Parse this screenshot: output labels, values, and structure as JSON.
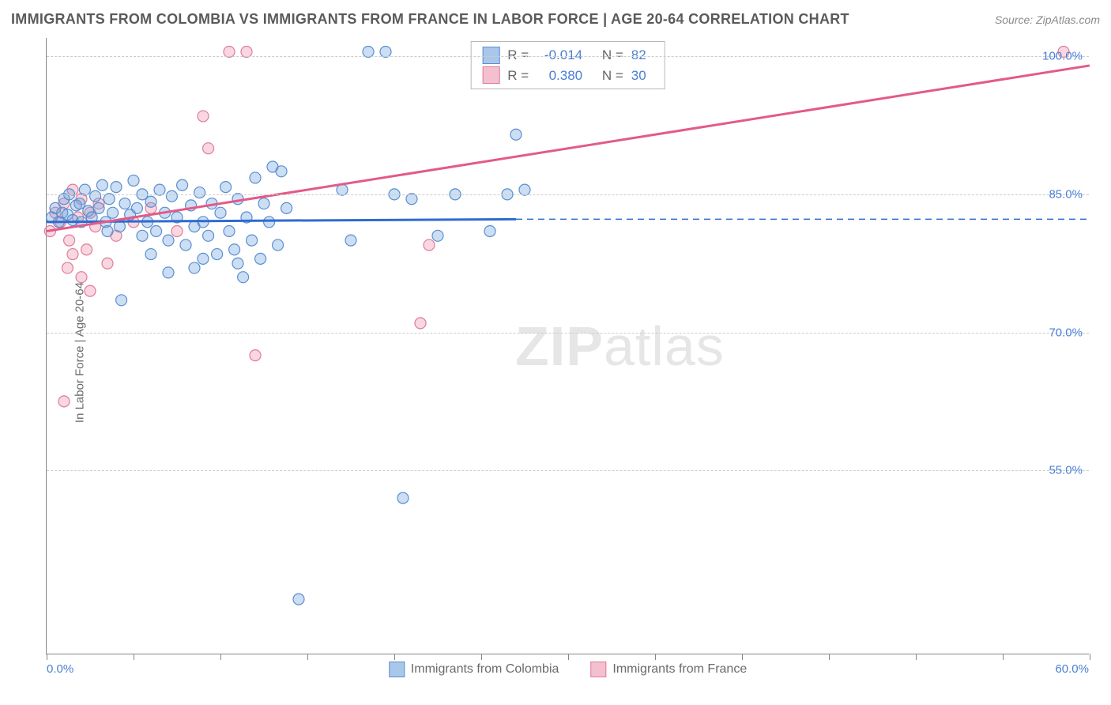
{
  "title": "IMMIGRANTS FROM COLOMBIA VS IMMIGRANTS FROM FRANCE IN LABOR FORCE | AGE 20-64 CORRELATION CHART",
  "source": "Source: ZipAtlas.com",
  "y_axis_label": "In Labor Force | Age 20-64",
  "watermark_bold": "ZIP",
  "watermark_rest": "atlas",
  "chart": {
    "type": "scatter",
    "xlim": [
      0,
      60
    ],
    "ylim": [
      35,
      102
    ],
    "x_tick_positions": [
      0,
      5,
      10,
      15,
      20,
      25,
      30,
      35,
      40,
      45,
      50,
      55,
      60
    ],
    "x_tick_labels_shown": {
      "0": "0.0%",
      "60": "60.0%"
    },
    "y_gridlines": [
      55,
      70,
      85,
      100
    ],
    "y_tick_labels": {
      "55": "55.0%",
      "70": "70.0%",
      "85": "85.0%",
      "100": "100.0%"
    },
    "background_color": "#ffffff",
    "grid_color": "#cccccc",
    "axis_color": "#888888",
    "tick_label_color": "#4a7fd4",
    "marker_radius": 7,
    "marker_stroke_width": 1.2,
    "series": [
      {
        "name": "Immigrants from Colombia",
        "fill": "rgba(108,160,220,0.35)",
        "stroke": "#5a8fd0",
        "swatch_fill": "#a9c7ea",
        "swatch_border": "#5a8fd0",
        "R": "-0.014",
        "N": "82",
        "regression": {
          "x1": 0,
          "y1": 82.0,
          "x2": 27,
          "y2": 82.3,
          "color": "#2e6bd0",
          "width": 3,
          "extend_dashed_to": 60,
          "extend_y": 82.3
        },
        "points": [
          [
            0.3,
            82.5
          ],
          [
            0.5,
            83.5
          ],
          [
            0.7,
            82.0
          ],
          [
            0.9,
            83.0
          ],
          [
            1.0,
            84.5
          ],
          [
            1.2,
            82.8
          ],
          [
            1.3,
            85.0
          ],
          [
            1.5,
            82.2
          ],
          [
            1.7,
            83.8
          ],
          [
            1.9,
            84.0
          ],
          [
            2.0,
            82.0
          ],
          [
            2.2,
            85.5
          ],
          [
            2.4,
            83.2
          ],
          [
            2.6,
            82.5
          ],
          [
            2.8,
            84.8
          ],
          [
            3.0,
            83.5
          ],
          [
            3.2,
            86.0
          ],
          [
            3.4,
            82.0
          ],
          [
            3.6,
            84.5
          ],
          [
            3.8,
            83.0
          ],
          [
            4.0,
            85.8
          ],
          [
            4.2,
            81.5
          ],
          [
            4.5,
            84.0
          ],
          [
            4.8,
            82.8
          ],
          [
            5.0,
            86.5
          ],
          [
            5.2,
            83.5
          ],
          [
            5.5,
            85.0
          ],
          [
            5.8,
            82.0
          ],
          [
            6.0,
            84.2
          ],
          [
            6.3,
            81.0
          ],
          [
            6.5,
            85.5
          ],
          [
            6.8,
            83.0
          ],
          [
            7.0,
            80.0
          ],
          [
            7.2,
            84.8
          ],
          [
            7.5,
            82.5
          ],
          [
            7.8,
            86.0
          ],
          [
            8.0,
            79.5
          ],
          [
            8.3,
            83.8
          ],
          [
            8.5,
            81.5
          ],
          [
            8.8,
            85.2
          ],
          [
            9.0,
            82.0
          ],
          [
            9.3,
            80.5
          ],
          [
            9.5,
            84.0
          ],
          [
            9.8,
            78.5
          ],
          [
            10.0,
            83.0
          ],
          [
            10.3,
            85.8
          ],
          [
            10.5,
            81.0
          ],
          [
            10.8,
            79.0
          ],
          [
            11.0,
            84.5
          ],
          [
            11.3,
            76.0
          ],
          [
            11.5,
            82.5
          ],
          [
            11.8,
            80.0
          ],
          [
            12.0,
            86.8
          ],
          [
            12.3,
            78.0
          ],
          [
            12.5,
            84.0
          ],
          [
            12.8,
            82.0
          ],
          [
            13.0,
            88.0
          ],
          [
            13.3,
            79.5
          ],
          [
            13.5,
            87.5
          ],
          [
            13.8,
            83.5
          ],
          [
            14.5,
            41.0
          ],
          [
            17.0,
            85.5
          ],
          [
            17.5,
            80.0
          ],
          [
            18.5,
            100.5
          ],
          [
            19.5,
            100.5
          ],
          [
            20.0,
            85.0
          ],
          [
            20.5,
            52.0
          ],
          [
            21.0,
            84.5
          ],
          [
            22.5,
            80.5
          ],
          [
            23.5,
            85.0
          ],
          [
            25.5,
            81.0
          ],
          [
            26.5,
            85.0
          ],
          [
            27.0,
            91.5
          ],
          [
            27.5,
            85.5
          ],
          [
            4.3,
            73.5
          ],
          [
            7.0,
            76.5
          ],
          [
            8.5,
            77.0
          ],
          [
            9.0,
            78.0
          ],
          [
            6.0,
            78.5
          ],
          [
            11.0,
            77.5
          ],
          [
            5.5,
            80.5
          ],
          [
            3.5,
            81.0
          ]
        ]
      },
      {
        "name": "Immigrants from France",
        "fill": "rgba(235,140,165,0.35)",
        "stroke": "#e07b9a",
        "swatch_fill": "#f4c0d0",
        "swatch_border": "#e07b9a",
        "R": "0.380",
        "N": "30",
        "regression": {
          "x1": 0,
          "y1": 81.0,
          "x2": 60,
          "y2": 99.0,
          "color": "#e35a88",
          "width": 3
        },
        "points": [
          [
            0.2,
            81.0
          ],
          [
            0.5,
            83.0
          ],
          [
            0.8,
            82.0
          ],
          [
            1.0,
            84.0
          ],
          [
            1.3,
            80.0
          ],
          [
            1.5,
            85.5
          ],
          [
            1.8,
            82.5
          ],
          [
            2.0,
            84.5
          ],
          [
            2.3,
            79.0
          ],
          [
            2.5,
            83.0
          ],
          [
            2.8,
            81.5
          ],
          [
            3.0,
            84.0
          ],
          [
            1.2,
            77.0
          ],
          [
            1.5,
            78.5
          ],
          [
            2.0,
            76.0
          ],
          [
            2.5,
            74.5
          ],
          [
            1.0,
            62.5
          ],
          [
            3.5,
            77.5
          ],
          [
            4.0,
            80.5
          ],
          [
            5.0,
            82.0
          ],
          [
            6.0,
            83.5
          ],
          [
            7.5,
            81.0
          ],
          [
            9.0,
            93.5
          ],
          [
            9.3,
            90.0
          ],
          [
            10.5,
            100.5
          ],
          [
            11.5,
            100.5
          ],
          [
            12.0,
            67.5
          ],
          [
            21.5,
            71.0
          ],
          [
            22.0,
            79.5
          ],
          [
            58.5,
            100.5
          ]
        ]
      }
    ]
  },
  "legend": {
    "series1_label": "Immigrants from Colombia",
    "series2_label": "Immigrants from France"
  },
  "stats_box": {
    "R_label": "R =",
    "N_label": "N ="
  }
}
